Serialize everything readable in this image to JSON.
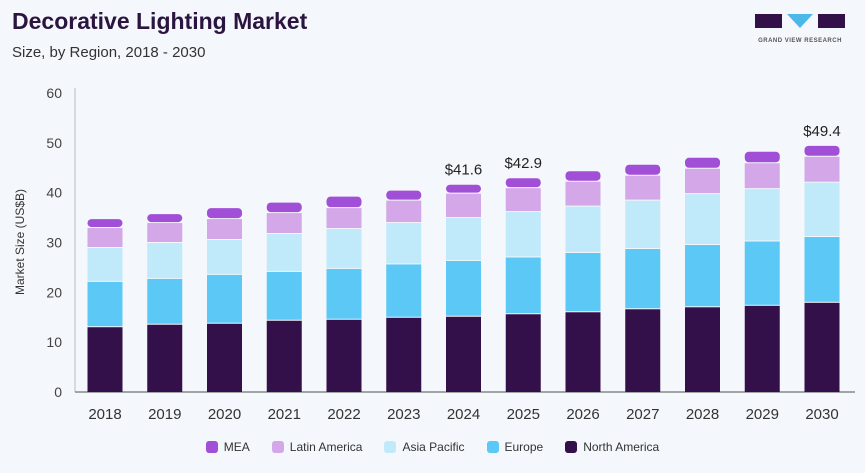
{
  "header": {
    "title": "Decorative Lighting Market",
    "subtitle": "Size, by Region, 2018 - 2030",
    "logo_text": "GRAND VIEW RESEARCH"
  },
  "chart_data": {
    "type": "bar",
    "stacked": true,
    "title": "Decorative Lighting Market",
    "xlabel": "",
    "ylabel": "Market Size (US$B)",
    "ylim": [
      0,
      60
    ],
    "yticks": [
      0,
      10,
      20,
      30,
      40,
      50,
      60
    ],
    "categories": [
      "2018",
      "2019",
      "2020",
      "2021",
      "2022",
      "2023",
      "2024",
      "2025",
      "2026",
      "2027",
      "2028",
      "2029",
      "2030"
    ],
    "series": [
      {
        "name": "North America",
        "color": "#33104a",
        "values": [
          13.0,
          13.5,
          13.7,
          14.3,
          14.5,
          14.9,
          15.1,
          15.6,
          16.0,
          16.6,
          17.0,
          17.3,
          17.9
        ]
      },
      {
        "name": "Europe",
        "color": "#5bc8f5",
        "values": [
          9.1,
          9.2,
          9.8,
          9.8,
          10.2,
          10.7,
          11.2,
          11.4,
          11.9,
          12.1,
          12.5,
          12.9,
          13.2
        ]
      },
      {
        "name": "Asia Pacific",
        "color": "#c0e9f9",
        "values": [
          6.8,
          7.2,
          7.0,
          7.6,
          8.0,
          8.3,
          8.6,
          9.1,
          9.3,
          9.7,
          10.2,
          10.5,
          10.9
        ]
      },
      {
        "name": "Latin America",
        "color": "#d3a7e8",
        "values": [
          4.0,
          4.0,
          4.2,
          4.2,
          4.2,
          4.5,
          4.9,
          4.8,
          5.0,
          5.0,
          5.1,
          5.2,
          5.2
        ]
      },
      {
        "name": "MEA",
        "color": "#a24fd7",
        "values": [
          1.8,
          1.8,
          2.2,
          2.1,
          2.3,
          2.0,
          1.8,
          2.0,
          2.1,
          2.2,
          2.2,
          2.3,
          2.2
        ]
      }
    ],
    "annotations": [
      {
        "category": "2024",
        "text": "$41.6",
        "value": 41.6
      },
      {
        "category": "2025",
        "text": "$42.9",
        "value": 42.9
      },
      {
        "category": "2030",
        "text": "$49.4",
        "value": 49.4
      }
    ],
    "legend_order": [
      "MEA",
      "Latin America",
      "Asia Pacific",
      "Europe",
      "North America"
    ],
    "legend_position": "bottom",
    "grid": false
  }
}
